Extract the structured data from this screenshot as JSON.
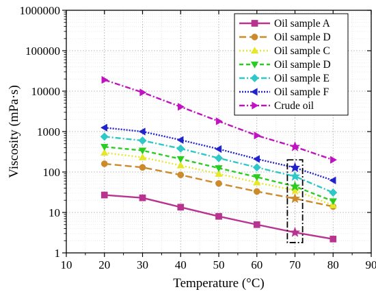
{
  "chart_data": {
    "type": "line",
    "xlabel": "Temperature (°C)",
    "ylabel": "Viscosity (mPa·s)",
    "xlim": [
      10,
      90
    ],
    "ylim": [
      1,
      1000000
    ],
    "yscale": "log",
    "grid": true,
    "legend_position": "top-right",
    "x_ticks": [
      "10",
      "20",
      "30",
      "40",
      "50",
      "60",
      "70",
      "80",
      "90"
    ],
    "y_ticks": [
      "1",
      "10",
      "100",
      "1000",
      "10000",
      "100000",
      "1000000"
    ],
    "x": [
      20,
      30,
      40,
      50,
      60,
      70,
      80
    ],
    "series": [
      {
        "name": "Oil sample A",
        "color": "#b8338f",
        "marker": "square",
        "dash": "solid",
        "values": [
          27,
          23,
          13.5,
          8,
          5,
          3.2,
          2.2
        ]
      },
      {
        "name": "Oil sample D",
        "color": "#cc8a2b",
        "marker": "circle",
        "dash": "long-dash",
        "values": [
          160,
          130,
          85,
          52,
          33,
          22,
          14
        ]
      },
      {
        "name": "Oil sample C",
        "color": "#e6e62a",
        "marker": "triangle-up",
        "dash": "dot",
        "values": [
          300,
          230,
          145,
          90,
          55,
          35,
          15
        ]
      },
      {
        "name": "Oil sample D",
        "color": "#2bcc22",
        "marker": "triangle-down",
        "dash": "dash",
        "values": [
          420,
          340,
          210,
          125,
          75,
          44,
          19
        ]
      },
      {
        "name": "Oil sample E",
        "color": "#2fc7c7",
        "marker": "diamond",
        "dash": "dash-dot",
        "values": [
          750,
          600,
          380,
          220,
          130,
          78,
          31
        ]
      },
      {
        "name": "Oil sample F",
        "color": "#2222cc",
        "marker": "triangle-left",
        "dash": "short-dot",
        "values": [
          1250,
          1000,
          620,
          370,
          210,
          128,
          62
        ]
      },
      {
        "name": "Crude oil",
        "color": "#c012c0",
        "marker": "triangle-right",
        "dash": "dash-dot",
        "values": [
          19000,
          9300,
          4100,
          1800,
          800,
          420,
          200
        ]
      }
    ],
    "annotations": [
      {
        "type": "dashed-box",
        "x_range": [
          68,
          72
        ],
        "y_range": [
          1.8,
          200
        ]
      }
    ]
  }
}
